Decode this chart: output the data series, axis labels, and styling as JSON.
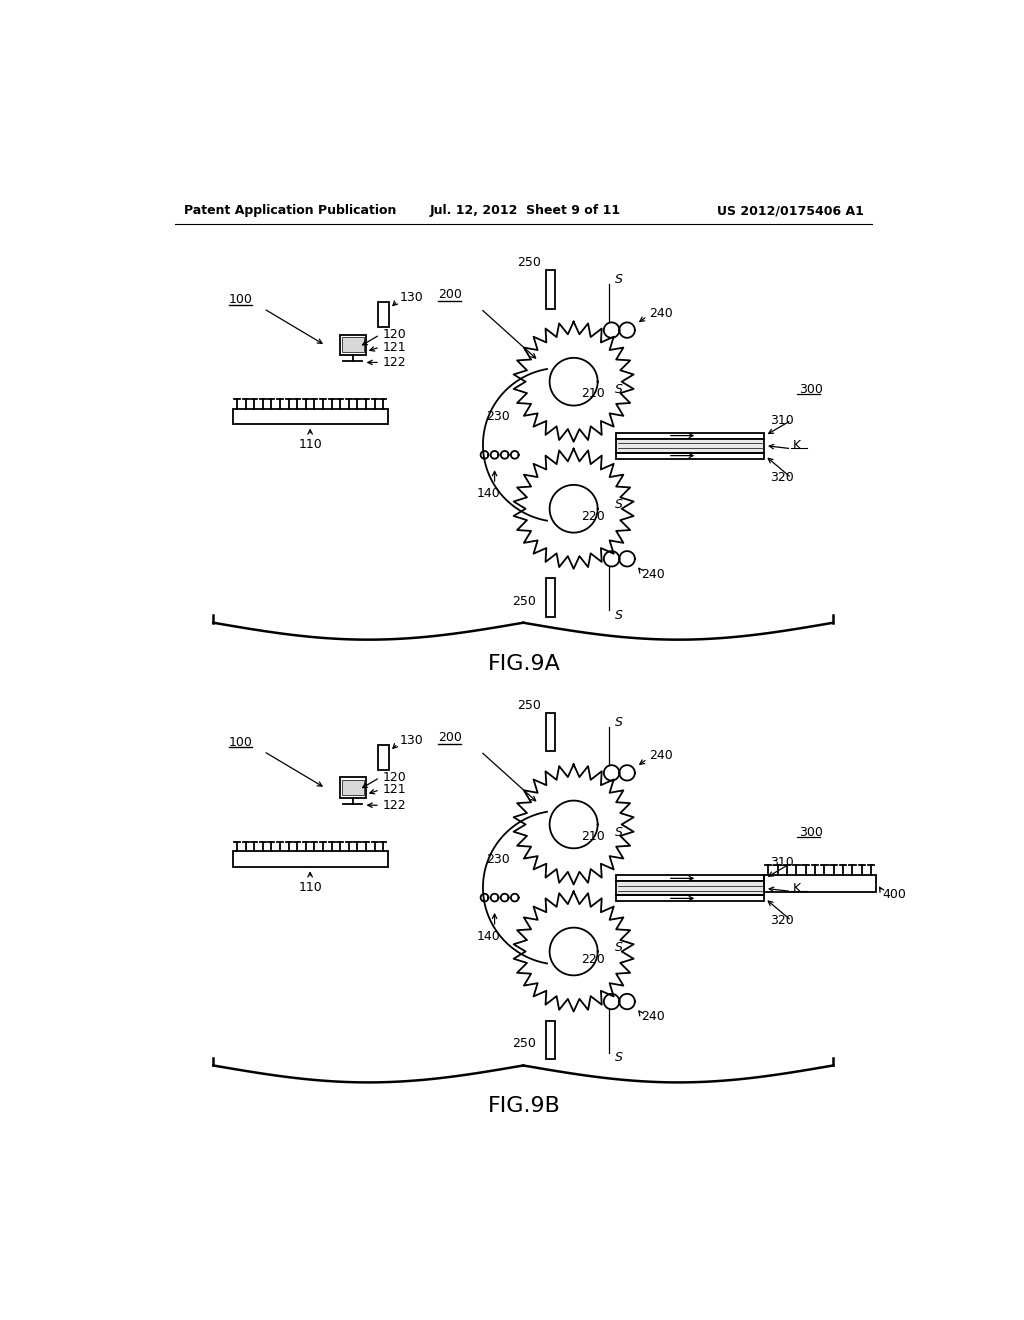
{
  "bg_color": "#ffffff",
  "line_color": "#000000",
  "header_left": "Patent Application Publication",
  "header_mid": "Jul. 12, 2012  Sheet 9 of 11",
  "header_right": "US 2012/0175406 A1",
  "fig_label_A": "FIG.9A",
  "fig_label_B": "FIG.9B"
}
